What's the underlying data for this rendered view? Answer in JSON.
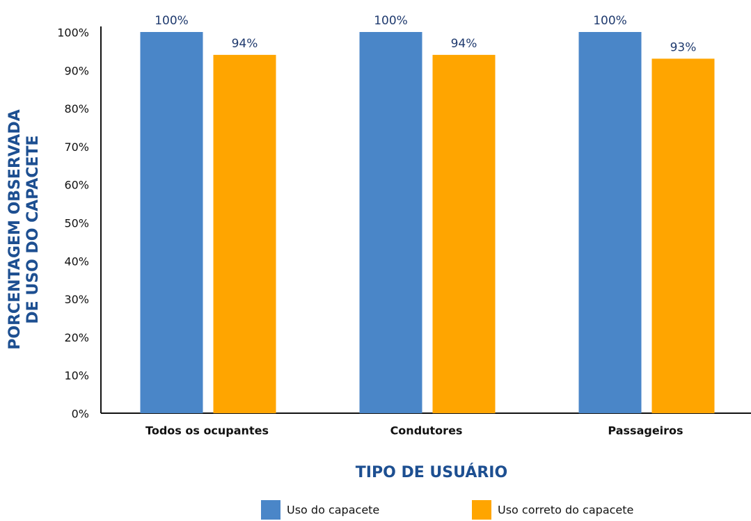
{
  "chart_data": {
    "type": "bar",
    "categories": [
      "Todos os ocupantes",
      "Condutores",
      "Passageiros"
    ],
    "series": [
      {
        "name": "Uso do capacete",
        "color": "#4a86c8",
        "values": [
          100,
          100,
          100
        ],
        "value_labels": [
          "100%",
          "100%",
          "100%"
        ]
      },
      {
        "name": "Uso correto do capacete",
        "color": "#ffa500",
        "values": [
          94,
          94,
          93
        ],
        "value_labels": [
          "94%",
          "94%",
          "93%"
        ]
      }
    ],
    "ylabel": [
      "PORCENTAGEM OBSERVADA",
      "DE USO DO CAPACETE"
    ],
    "xlabel": "TIPO DE USUÁRIO",
    "ylim": [
      0,
      100
    ],
    "yticks": [
      {
        "value": 0,
        "label": "0%"
      },
      {
        "value": 10,
        "label": "10%"
      },
      {
        "value": 20,
        "label": "20%"
      },
      {
        "value": 30,
        "label": "30%"
      },
      {
        "value": 40,
        "label": "40%"
      },
      {
        "value": 50,
        "label": "50%"
      },
      {
        "value": 60,
        "label": "60%"
      },
      {
        "value": 70,
        "label": "70%"
      },
      {
        "value": 80,
        "label": "80%"
      },
      {
        "value": 90,
        "label": "90%"
      },
      {
        "value": 100,
        "label": "100%"
      }
    ],
    "grid": false,
    "legend": "bottom"
  }
}
